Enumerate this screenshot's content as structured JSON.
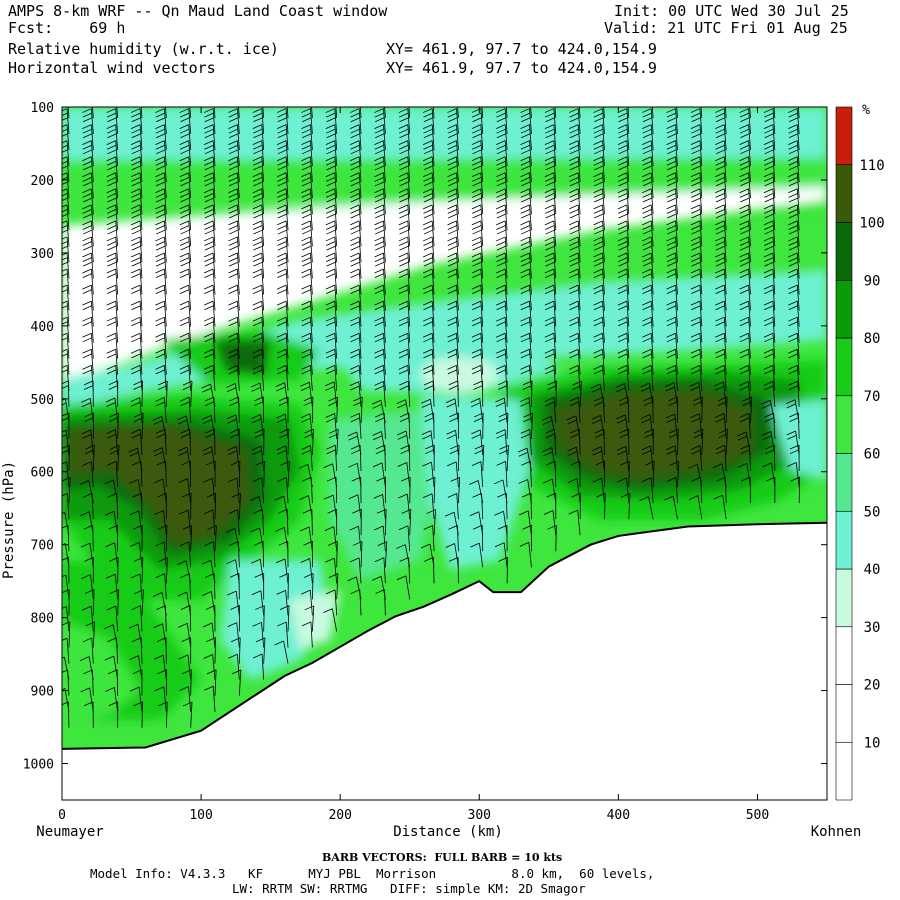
{
  "header": {
    "title": "AMPS 8-km WRF -- Qn Maud Land Coast window",
    "fcst": "Fcst:    69 h",
    "init": "Init: 00 UTC Wed 30 Jul 25",
    "valid": "Valid: 21 UTC Fri 01 Aug 25",
    "field1": "Relative humidity (w.r.t. ice)",
    "field2": "Horizontal wind vectors",
    "xy1": "XY= 461.9, 97.7 to 424.0,154.9",
    "xy2": "XY= 461.9, 97.7 to 424.0,154.9"
  },
  "footer": {
    "barb_note": "BARB VECTORS:  FULL BARB = 10 kts",
    "model_info": "Model Info: V4.3.3   KF      MYJ PBL  Morrison          8.0 km,  60 levels,",
    "model_info2": "LW: RRTM SW: RRTMG   DIFF: simple KM: 2D Smagor"
  },
  "colors": {
    "band_0_30": "#ffffff",
    "band_30_40": "#c8fae0",
    "band_40_50": "#6ef0d2",
    "band_50_60": "#55e890",
    "band_60_70": "#3ee63e",
    "band_70_80": "#18cc18",
    "band_80_90": "#0a9a0a",
    "band_90_100": "#0a6a0a",
    "band_100_110": "#3a5a0a",
    "band_110_plus": "#c81e0a"
  },
  "chart_data": {
    "type": "heatmap",
    "description_fields": [
      "relative humidity (w.r.t. ice)",
      "horizontal wind barbs"
    ],
    "xlabel": "Distance (km)",
    "ylabel": "Pressure (hPa)",
    "x_left_label": "Neumayer",
    "x_right_label": "Kohnen",
    "xlim": [
      0,
      550
    ],
    "ylim": [
      100,
      1050
    ],
    "y_axis": "pressure, increasing downward",
    "xticks": [
      0,
      100,
      200,
      300,
      400,
      500
    ],
    "yticks": [
      100,
      200,
      300,
      400,
      500,
      600,
      700,
      800,
      900,
      1000
    ],
    "colorbar": {
      "unit": "%",
      "levels": [
        10,
        20,
        30,
        40,
        50,
        60,
        70,
        80,
        90,
        100,
        110
      ],
      "label_levels": [
        10,
        20,
        30,
        40,
        50,
        60,
        70,
        80,
        90,
        100,
        110
      ]
    },
    "terrain_surface_pressure": {
      "x": [
        0,
        60,
        100,
        140,
        160,
        180,
        200,
        220,
        240,
        260,
        280,
        300,
        310,
        330,
        350,
        380,
        400,
        450,
        500,
        550
      ],
      "p": [
        980,
        978,
        955,
        905,
        880,
        862,
        840,
        818,
        798,
        785,
        768,
        750,
        765,
        765,
        730,
        700,
        688,
        675,
        672,
        670
      ]
    }
  }
}
